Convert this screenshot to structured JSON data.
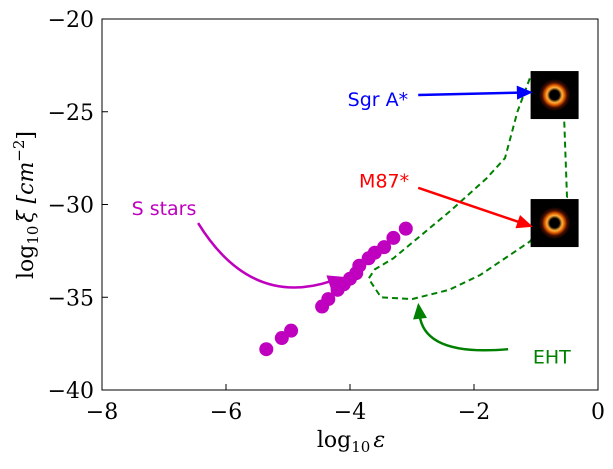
{
  "chart_data": {
    "type": "scatter",
    "title": "",
    "xlabel": "log",
    "xlabel_sub": "10",
    "xlabel_var": "ε",
    "ylabel": "log",
    "ylabel_sub": "10",
    "ylabel_var": "ξ [cm",
    "ylabel_exp": "−2",
    "ylabel_close": "]",
    "xlim": [
      -8,
      0
    ],
    "ylim": [
      -40,
      -20
    ],
    "x_ticks": [
      -8,
      -6,
      -4,
      -2,
      0
    ],
    "x_tick_labels": [
      "−8",
      "−6",
      "−4",
      "−2",
      "0"
    ],
    "y_ticks": [
      -40,
      -35,
      -30,
      -25,
      -20
    ],
    "y_tick_labels": [
      "−40",
      "−35",
      "−30",
      "−25",
      "−20"
    ],
    "grid": false,
    "series": [
      {
        "name": "S stars",
        "type": "scatter",
        "color": "#bf00bf",
        "points": [
          [
            -5.35,
            -37.8
          ],
          [
            -5.1,
            -37.2
          ],
          [
            -4.95,
            -36.8
          ],
          [
            -4.45,
            -35.5
          ],
          [
            -4.35,
            -35.1
          ],
          [
            -4.2,
            -34.6
          ],
          [
            -4.1,
            -34.3
          ],
          [
            -4.0,
            -34.0
          ],
          [
            -3.9,
            -33.7
          ],
          [
            -3.85,
            -33.3
          ],
          [
            -3.7,
            -32.9
          ],
          [
            -3.6,
            -32.6
          ],
          [
            -3.45,
            -32.3
          ],
          [
            -3.3,
            -31.8
          ],
          [
            -3.1,
            -31.3
          ]
        ]
      },
      {
        "name": "EHT",
        "type": "line",
        "style": "dashed",
        "color": "#008000",
        "points": [
          [
            -1.1,
            -23.2
          ],
          [
            -1.3,
            -25.0
          ],
          [
            -1.5,
            -27.5
          ],
          [
            -1.8,
            -28.6
          ],
          [
            -2.4,
            -30.4
          ],
          [
            -3.3,
            -32.9
          ],
          [
            -3.6,
            -33.5
          ],
          [
            -3.7,
            -34.0
          ],
          [
            -3.5,
            -35.0
          ],
          [
            -3.0,
            -35.1
          ],
          [
            -2.4,
            -34.6
          ],
          [
            -1.9,
            -33.8
          ],
          [
            -1.1,
            -32.0
          ],
          [
            -0.5,
            -29.6
          ],
          [
            -0.55,
            -25.0
          ]
        ]
      }
    ],
    "annotations": [
      {
        "label": "Sgr A*",
        "color": "#0000ff",
        "text_at": [
          -3.55,
          -24.3
        ],
        "arrow_from": [
          -2.9,
          -24.1
        ],
        "arrow_to": [
          -1.05,
          -23.95
        ]
      },
      {
        "label": "M87*",
        "color": "#ff0000",
        "text_at": [
          -3.45,
          -28.7
        ],
        "arrow_from": [
          -2.9,
          -29.1
        ],
        "arrow_to": [
          -1.05,
          -31.2
        ]
      },
      {
        "label": "S stars",
        "color": "#bf00bf",
        "text_at": [
          -7.0,
          -30.2
        ],
        "arrow_from": [
          -6.45,
          -31.0
        ],
        "arrow_to": [
          -4.1,
          -33.9
        ],
        "curved": true
      },
      {
        "label": "EHT",
        "color": "#008000",
        "text_at": [
          -1.05,
          -38.2
        ],
        "arrow_from": [
          -1.45,
          -37.8
        ],
        "arrow_to": [
          -2.9,
          -35.3
        ],
        "curved": true
      }
    ],
    "image_markers": [
      {
        "name": "sgr-a-star-image",
        "center": [
          -0.7,
          -24.1
        ]
      },
      {
        "name": "m87-star-image",
        "center": [
          -0.7,
          -31.0
        ]
      }
    ]
  }
}
